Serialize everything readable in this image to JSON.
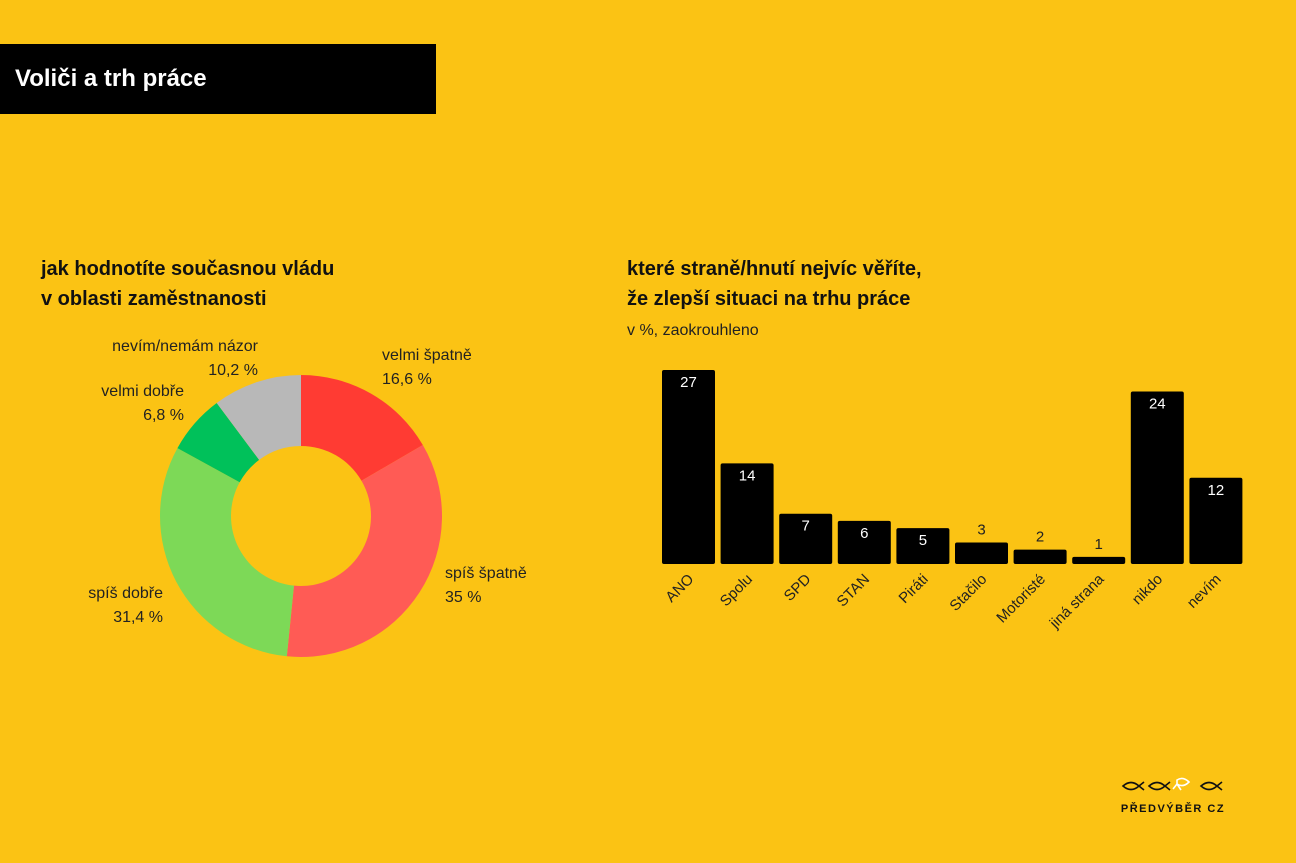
{
  "header": {
    "title": "Voliči a trh práce"
  },
  "colors": {
    "background": "#FBC314",
    "bar": "#000000",
    "velmi_spatne": "#FF3B33",
    "spis_spatne": "#FF5B55",
    "spis_dobre": "#7DD957",
    "velmi_dobre": "#00C15A",
    "nevim": "#B8B8B8"
  },
  "chart_data": [
    {
      "type": "pie",
      "title_lines": [
        "jak hodnotíte současnou vládu",
        "v oblasti zaměstnanosti"
      ],
      "slices": [
        {
          "name": "velmi špatně",
          "value": 16.6,
          "value_label": "16,6 %",
          "color": "#FF3B33"
        },
        {
          "name": "spíš špatně",
          "value": 35,
          "value_label": "35 %",
          "color": "#FF5B55"
        },
        {
          "name": "spíš dobře",
          "value": 31.4,
          "value_label": "31,4 %",
          "color": "#7DD957"
        },
        {
          "name": "velmi dobře",
          "value": 6.8,
          "value_label": "6,8 %",
          "color": "#00C15A"
        },
        {
          "name": "nevím/nemám názor",
          "value": 10.2,
          "value_label": "10,2 %",
          "color": "#B8B8B8"
        }
      ]
    },
    {
      "type": "bar",
      "title_lines": [
        "které straně/hnutí nejvíc věříte,",
        "že zlepší situaci na trhu práce"
      ],
      "subtitle": "v %, zaokrouhleno",
      "categories": [
        "ANO",
        "Spolu",
        "SPD",
        "STAN",
        "Piráti",
        "Stačilo",
        "Motoristé",
        "jiná strana",
        "nikdo",
        "nevím"
      ],
      "values": [
        27,
        14,
        7,
        6,
        5,
        3,
        2,
        1,
        24,
        12
      ],
      "ylim": [
        0,
        27
      ]
    }
  ],
  "logo": {
    "text": "PŘEDVÝBĚR CZ",
    "icon": "fish-icon"
  }
}
